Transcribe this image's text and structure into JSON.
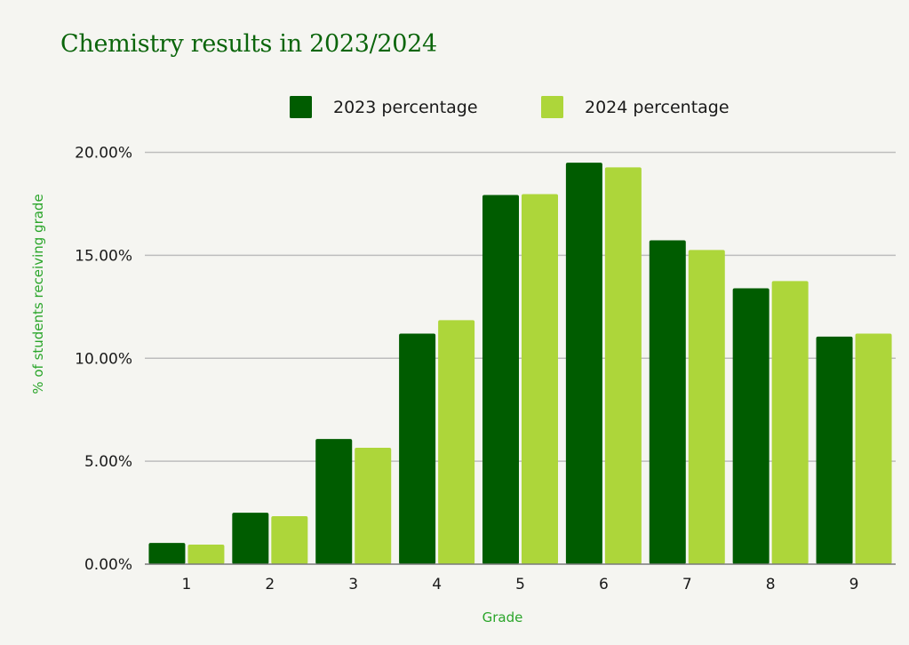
{
  "chart_data": {
    "type": "bar",
    "title": "Chemistry results in 2023/2024",
    "xlabel": "Grade",
    "ylabel": "% of students receiving grade",
    "categories": [
      "1",
      "2",
      "3",
      "4",
      "5",
      "6",
      "7",
      "8",
      "9"
    ],
    "series": [
      {
        "name": "2023 percentage",
        "color": "#005c00",
        "values": [
          1.03,
          2.5,
          6.08,
          11.2,
          17.93,
          19.5,
          15.73,
          13.4,
          11.05
        ]
      },
      {
        "name": "2024 percentage",
        "color": "#add63a",
        "values": [
          0.95,
          2.33,
          5.65,
          11.85,
          17.97,
          19.27,
          15.26,
          13.75,
          11.2
        ]
      }
    ],
    "ylim": [
      0,
      20
    ],
    "yticks": [
      0,
      5,
      10,
      15,
      20
    ],
    "ytick_labels": [
      "0.00%",
      "5.00%",
      "10.00%",
      "15.00%",
      "20.00%"
    ],
    "grid": true,
    "legend_position": "top-center"
  },
  "colors": {
    "title": "#0b650b",
    "axis_title": "#2aa52a",
    "gridline": "#bdbdbd",
    "background": "#f5f5f1"
  }
}
